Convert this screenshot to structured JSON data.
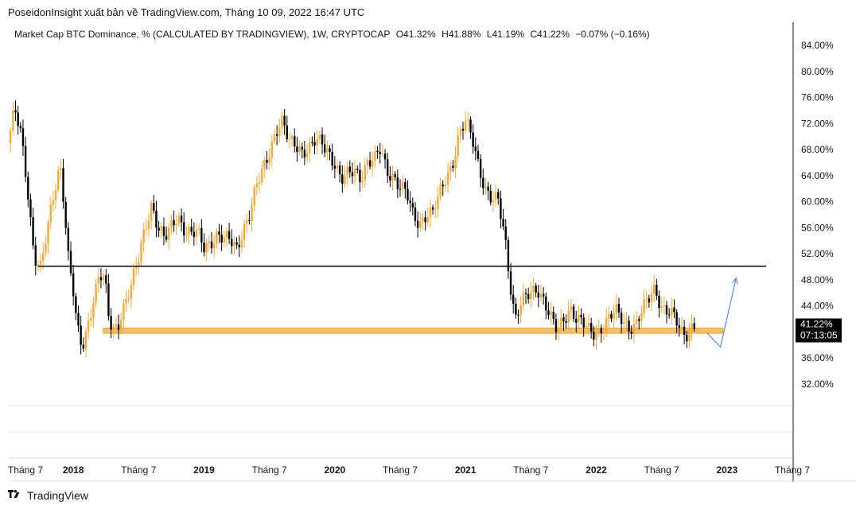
{
  "header": {
    "publisher_line": "PoseidonInsight xuất bản về TradingView.com, Tháng 10 09, 2022 16:47 UTC"
  },
  "legend": {
    "title": "Market Cap BTC Dominance, % (CALCULATED BY TRADINGVIEW), 1W, CRYPTOCAP",
    "open": "O41.32%",
    "high": "H41.88%",
    "low": "L41.19%",
    "close": "C41.22%",
    "change": "−0.07% (−0.16%)"
  },
  "price_badge": {
    "value": "41.22%",
    "countdown": "07:13:05"
  },
  "footer": {
    "brand": "TradingView"
  },
  "colors": {
    "up": "#f6a935",
    "down": "#000000",
    "zone": "#f8b34f",
    "arrow": "#5b8de8",
    "badge": "#000000"
  },
  "chart_data": {
    "type": "candlestick",
    "yticks": [
      "84.00%",
      "80.00%",
      "76.00%",
      "72.00%",
      "68.00%",
      "64.00%",
      "60.00%",
      "56.00%",
      "52.00%",
      "48.00%",
      "44.00%",
      "36.00%",
      "32.00%"
    ],
    "ytick_values": [
      84,
      80,
      76,
      72,
      68,
      64,
      60,
      56,
      52,
      48,
      44,
      36,
      32
    ],
    "ylim": [
      30.8,
      86.2
    ],
    "xticks": [
      {
        "label": "Tháng 7",
        "t": 2017.5,
        "bold": false
      },
      {
        "label": "2018",
        "t": 2018.0,
        "bold": true
      },
      {
        "label": "Tháng 7",
        "t": 2018.5,
        "bold": false
      },
      {
        "label": "2019",
        "t": 2019.0,
        "bold": true
      },
      {
        "label": "Tháng 7",
        "t": 2019.5,
        "bold": false
      },
      {
        "label": "2020",
        "t": 2020.0,
        "bold": true
      },
      {
        "label": "Tháng 7",
        "t": 2020.5,
        "bold": false
      },
      {
        "label": "2021",
        "t": 2021.0,
        "bold": true
      },
      {
        "label": "Tháng 7",
        "t": 2021.5,
        "bold": false
      },
      {
        "label": "2022",
        "t": 2022.0,
        "bold": true
      },
      {
        "label": "Tháng 7",
        "t": 2022.5,
        "bold": false
      },
      {
        "label": "2023",
        "t": 2023.0,
        "bold": true
      },
      {
        "label": "Tháng 7",
        "t": 2023.5,
        "bold": false
      }
    ],
    "xlim": [
      2017.5,
      2023.5
    ],
    "resistance_level": 50.1,
    "resistance_range": [
      2017.73,
      2023.3
    ],
    "support_zone": {
      "low": 39.8,
      "high": 40.6,
      "from": 2018.23,
      "to": 2022.97
    },
    "projection": [
      [
        2022.85,
        39.8
      ],
      [
        2022.95,
        37.7
      ],
      [
        2023.07,
        48.3
      ]
    ],
    "path": [
      [
        2017.5,
        69
      ],
      [
        2017.55,
        74
      ],
      [
        2017.6,
        70
      ],
      [
        2017.65,
        62
      ],
      [
        2017.7,
        52
      ],
      [
        2017.75,
        50
      ],
      [
        2017.8,
        55
      ],
      [
        2017.85,
        61
      ],
      [
        2017.9,
        66
      ],
      [
        2017.93,
        60
      ],
      [
        2017.96,
        52
      ],
      [
        2018.0,
        46
      ],
      [
        2018.02,
        42
      ],
      [
        2018.05,
        38
      ],
      [
        2018.08,
        38
      ],
      [
        2018.12,
        42
      ],
      [
        2018.16,
        46
      ],
      [
        2018.2,
        49
      ],
      [
        2018.24,
        48
      ],
      [
        2018.27,
        42
      ],
      [
        2018.3,
        40
      ],
      [
        2018.34,
        41
      ],
      [
        2018.38,
        44
      ],
      [
        2018.44,
        47
      ],
      [
        2018.5,
        51
      ],
      [
        2018.55,
        56
      ],
      [
        2018.6,
        60
      ],
      [
        2018.65,
        56
      ],
      [
        2018.7,
        54
      ],
      [
        2018.75,
        56
      ],
      [
        2018.8,
        58
      ],
      [
        2018.85,
        56
      ],
      [
        2018.9,
        55
      ],
      [
        2018.95,
        55
      ],
      [
        2019.0,
        53
      ],
      [
        2019.05,
        54
      ],
      [
        2019.1,
        55
      ],
      [
        2019.15,
        54
      ],
      [
        2019.2,
        54
      ],
      [
        2019.25,
        53
      ],
      [
        2019.3,
        56
      ],
      [
        2019.35,
        58
      ],
      [
        2019.4,
        62
      ],
      [
        2019.45,
        65
      ],
      [
        2019.5,
        68
      ],
      [
        2019.55,
        71
      ],
      [
        2019.6,
        72
      ],
      [
        2019.65,
        69
      ],
      [
        2019.7,
        69
      ],
      [
        2019.75,
        68
      ],
      [
        2019.8,
        68
      ],
      [
        2019.85,
        69
      ],
      [
        2019.9,
        69
      ],
      [
        2019.95,
        68
      ],
      [
        2020.0,
        66
      ],
      [
        2020.05,
        63
      ],
      [
        2020.1,
        64
      ],
      [
        2020.15,
        65
      ],
      [
        2020.2,
        64
      ],
      [
        2020.25,
        66
      ],
      [
        2020.3,
        66
      ],
      [
        2020.35,
        68
      ],
      [
        2020.4,
        65
      ],
      [
        2020.45,
        64
      ],
      [
        2020.5,
        62
      ],
      [
        2020.55,
        61
      ],
      [
        2020.6,
        58
      ],
      [
        2020.65,
        57
      ],
      [
        2020.7,
        58
      ],
      [
        2020.75,
        58
      ],
      [
        2020.8,
        61
      ],
      [
        2020.85,
        64
      ],
      [
        2020.9,
        66
      ],
      [
        2020.95,
        70
      ],
      [
        2021.0,
        72
      ],
      [
        2021.05,
        70
      ],
      [
        2021.1,
        66
      ],
      [
        2021.15,
        62
      ],
      [
        2021.2,
        60
      ],
      [
        2021.25,
        60
      ],
      [
        2021.3,
        55
      ],
      [
        2021.34,
        48
      ],
      [
        2021.38,
        42
      ],
      [
        2021.42,
        44
      ],
      [
        2021.46,
        45
      ],
      [
        2021.5,
        46
      ],
      [
        2021.55,
        47
      ],
      [
        2021.6,
        45
      ],
      [
        2021.65,
        42
      ],
      [
        2021.7,
        40
      ],
      [
        2021.75,
        42
      ],
      [
        2021.8,
        44
      ],
      [
        2021.85,
        42
      ],
      [
        2021.9,
        41
      ],
      [
        2021.95,
        40
      ],
      [
        2022.0,
        40
      ],
      [
        2022.05,
        41
      ],
      [
        2022.1,
        42
      ],
      [
        2022.15,
        43
      ],
      [
        2022.2,
        42
      ],
      [
        2022.25,
        41
      ],
      [
        2022.3,
        41
      ],
      [
        2022.35,
        43
      ],
      [
        2022.4,
        45
      ],
      [
        2022.45,
        47
      ],
      [
        2022.5,
        44
      ],
      [
        2022.55,
        43
      ],
      [
        2022.6,
        42
      ],
      [
        2022.65,
        40
      ],
      [
        2022.7,
        40
      ],
      [
        2022.73,
        41
      ],
      [
        2022.76,
        41.22
      ]
    ]
  }
}
